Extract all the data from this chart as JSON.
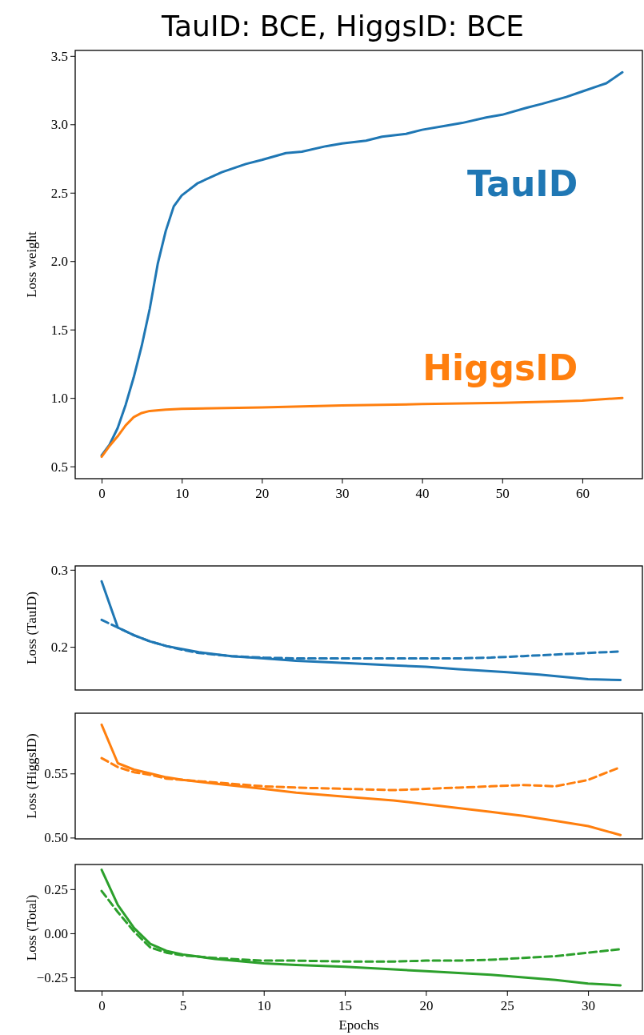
{
  "chart_data": [
    {
      "type": "line",
      "title": "TauID: BCE, HiggsID: BCE",
      "ylabel": "Loss weight",
      "xlim": [
        -3.3,
        67.5
      ],
      "ylim": [
        0.41,
        3.54
      ],
      "xticks": [
        0,
        10,
        20,
        30,
        40,
        50,
        60
      ],
      "yticks": [
        {
          "value": 0.5,
          "label": "0.5"
        },
        {
          "value": 1,
          "label": "1.0"
        },
        {
          "value": 1.5,
          "label": "1.5"
        },
        {
          "value": 2,
          "label": "2.0"
        },
        {
          "value": 2.5,
          "label": "2.5"
        },
        {
          "value": 3,
          "label": "3.0"
        },
        {
          "value": 3.5,
          "label": "3.5"
        }
      ],
      "grid": false,
      "legend": false,
      "marker": "none",
      "series": [
        {
          "name": "TauID",
          "color": "#1f77b4",
          "line_style": "solid",
          "x": [
            0,
            1,
            2,
            3,
            4,
            5,
            6,
            7,
            8,
            9,
            10,
            12,
            15,
            18,
            20,
            23,
            25,
            28,
            30,
            33,
            35,
            38,
            40,
            43,
            45,
            48,
            50,
            53,
            55,
            58,
            60,
            62,
            63,
            65
          ],
          "values": [
            0.58,
            0.66,
            0.78,
            0.95,
            1.15,
            1.38,
            1.65,
            1.98,
            2.22,
            2.4,
            2.48,
            2.57,
            2.65,
            2.71,
            2.74,
            2.79,
            2.8,
            2.84,
            2.86,
            2.88,
            2.91,
            2.93,
            2.96,
            2.99,
            3.01,
            3.05,
            3.07,
            3.12,
            3.15,
            3.2,
            3.24,
            3.28,
            3.3,
            3.38
          ]
        },
        {
          "name": "HiggsID",
          "color": "#ff7f0e",
          "line_style": "solid",
          "x": [
            0,
            1,
            2,
            3,
            4,
            5,
            6,
            8,
            10,
            20,
            30,
            40,
            50,
            57,
            60,
            65
          ],
          "values": [
            0.57,
            0.65,
            0.72,
            0.8,
            0.86,
            0.89,
            0.905,
            0.915,
            0.92,
            0.93,
            0.945,
            0.955,
            0.965,
            0.975,
            0.98,
            1.0
          ]
        }
      ]
    },
    {
      "type": "line",
      "ylabel": "Loss (TauID)",
      "xlim": [
        -1.63,
        33.35
      ],
      "ylim": [
        0.144,
        0.305
      ],
      "xticks": [
        0,
        5,
        10,
        15,
        20,
        25,
        30
      ],
      "yticks": [
        0.2,
        0.3
      ],
      "tick_labels": "y",
      "grid": false,
      "legend": false,
      "marker": "none",
      "series": [
        {
          "color": "#1f77b4",
          "line_style": "solid",
          "x": [
            0,
            1,
            2,
            3,
            4,
            5,
            6,
            8,
            10,
            12,
            15,
            18,
            20,
            22,
            25,
            27,
            30,
            32
          ],
          "values": [
            0.285,
            0.225,
            0.215,
            0.207,
            0.201,
            0.197,
            0.193,
            0.188,
            0.185,
            0.182,
            0.179,
            0.176,
            0.174,
            0.171,
            0.167,
            0.164,
            0.158,
            0.157
          ]
        },
        {
          "color": "#1f77b4",
          "line_style": "dashed",
          "x": [
            0,
            1,
            2,
            3,
            4,
            5,
            6,
            8,
            10,
            12,
            15,
            18,
            20,
            22,
            24,
            26,
            28,
            30,
            32
          ],
          "values": [
            0.235,
            0.225,
            0.215,
            0.207,
            0.201,
            0.196,
            0.192,
            0.188,
            0.186,
            0.185,
            0.185,
            0.185,
            0.185,
            0.185,
            0.186,
            0.188,
            0.19,
            0.192,
            0.194
          ]
        }
      ]
    },
    {
      "type": "line",
      "ylabel": "Loss (HiggsID)",
      "xlim": [
        -1.63,
        33.35
      ],
      "ylim": [
        0.499,
        0.597
      ],
      "xticks": [
        0,
        5,
        10,
        15,
        20,
        25,
        30
      ],
      "yticks": [
        {
          "value": 0.5,
          "label": "0.50"
        },
        {
          "value": 0.55,
          "label": "0.55"
        }
      ],
      "tick_labels": "y",
      "grid": false,
      "legend": false,
      "marker": "none",
      "series": [
        {
          "color": "#ff7f0e",
          "line_style": "solid",
          "x": [
            0,
            1,
            2,
            3,
            4,
            5,
            7,
            10,
            12,
            15,
            18,
            20,
            22,
            24,
            26,
            28,
            30,
            32
          ],
          "values": [
            0.588,
            0.558,
            0.553,
            0.55,
            0.547,
            0.545,
            0.542,
            0.538,
            0.535,
            0.532,
            0.529,
            0.526,
            0.523,
            0.52,
            0.517,
            0.513,
            0.509,
            0.502
          ]
        },
        {
          "color": "#ff7f0e",
          "line_style": "dashed",
          "x": [
            0,
            1,
            2,
            3,
            4,
            5,
            7,
            10,
            12,
            15,
            18,
            20,
            22,
            24,
            26,
            28,
            30,
            32
          ],
          "values": [
            0.562,
            0.555,
            0.551,
            0.549,
            0.546,
            0.545,
            0.543,
            0.54,
            0.539,
            0.538,
            0.537,
            0.538,
            0.539,
            0.54,
            0.541,
            0.54,
            0.545,
            0.555
          ]
        }
      ]
    },
    {
      "type": "line",
      "xlabel": "Epochs",
      "ylabel": "Loss (Total)",
      "xlim": [
        -1.63,
        33.35
      ],
      "ylim": [
        -0.327,
        0.39
      ],
      "xticks": [
        0,
        5,
        10,
        15,
        20,
        25,
        30
      ],
      "yticks": [
        {
          "value": -0.25,
          "label": "−0.25"
        },
        {
          "value": 0,
          "label": "0.00"
        },
        {
          "value": 0.25,
          "label": "0.25"
        }
      ],
      "grid": false,
      "legend": false,
      "marker": "none",
      "series": [
        {
          "color": "#2ca02c",
          "line_style": "solid",
          "x": [
            0,
            1,
            2,
            3,
            4,
            5,
            7,
            10,
            12,
            15,
            18,
            20,
            22,
            24,
            26,
            28,
            30,
            32
          ],
          "values": [
            0.36,
            0.16,
            0.03,
            -0.06,
            -0.1,
            -0.12,
            -0.145,
            -0.17,
            -0.18,
            -0.19,
            -0.205,
            -0.215,
            -0.225,
            -0.235,
            -0.25,
            -0.265,
            -0.285,
            -0.295
          ]
        },
        {
          "color": "#2ca02c",
          "line_style": "dashed",
          "x": [
            0,
            1,
            2,
            3,
            4,
            5,
            7,
            10,
            12,
            15,
            18,
            20,
            22,
            24,
            26,
            28,
            30,
            32
          ],
          "values": [
            0.24,
            0.12,
            0.01,
            -0.08,
            -0.11,
            -0.125,
            -0.14,
            -0.155,
            -0.155,
            -0.16,
            -0.16,
            -0.155,
            -0.155,
            -0.15,
            -0.14,
            -0.13,
            -0.11,
            -0.09
          ]
        }
      ]
    }
  ]
}
